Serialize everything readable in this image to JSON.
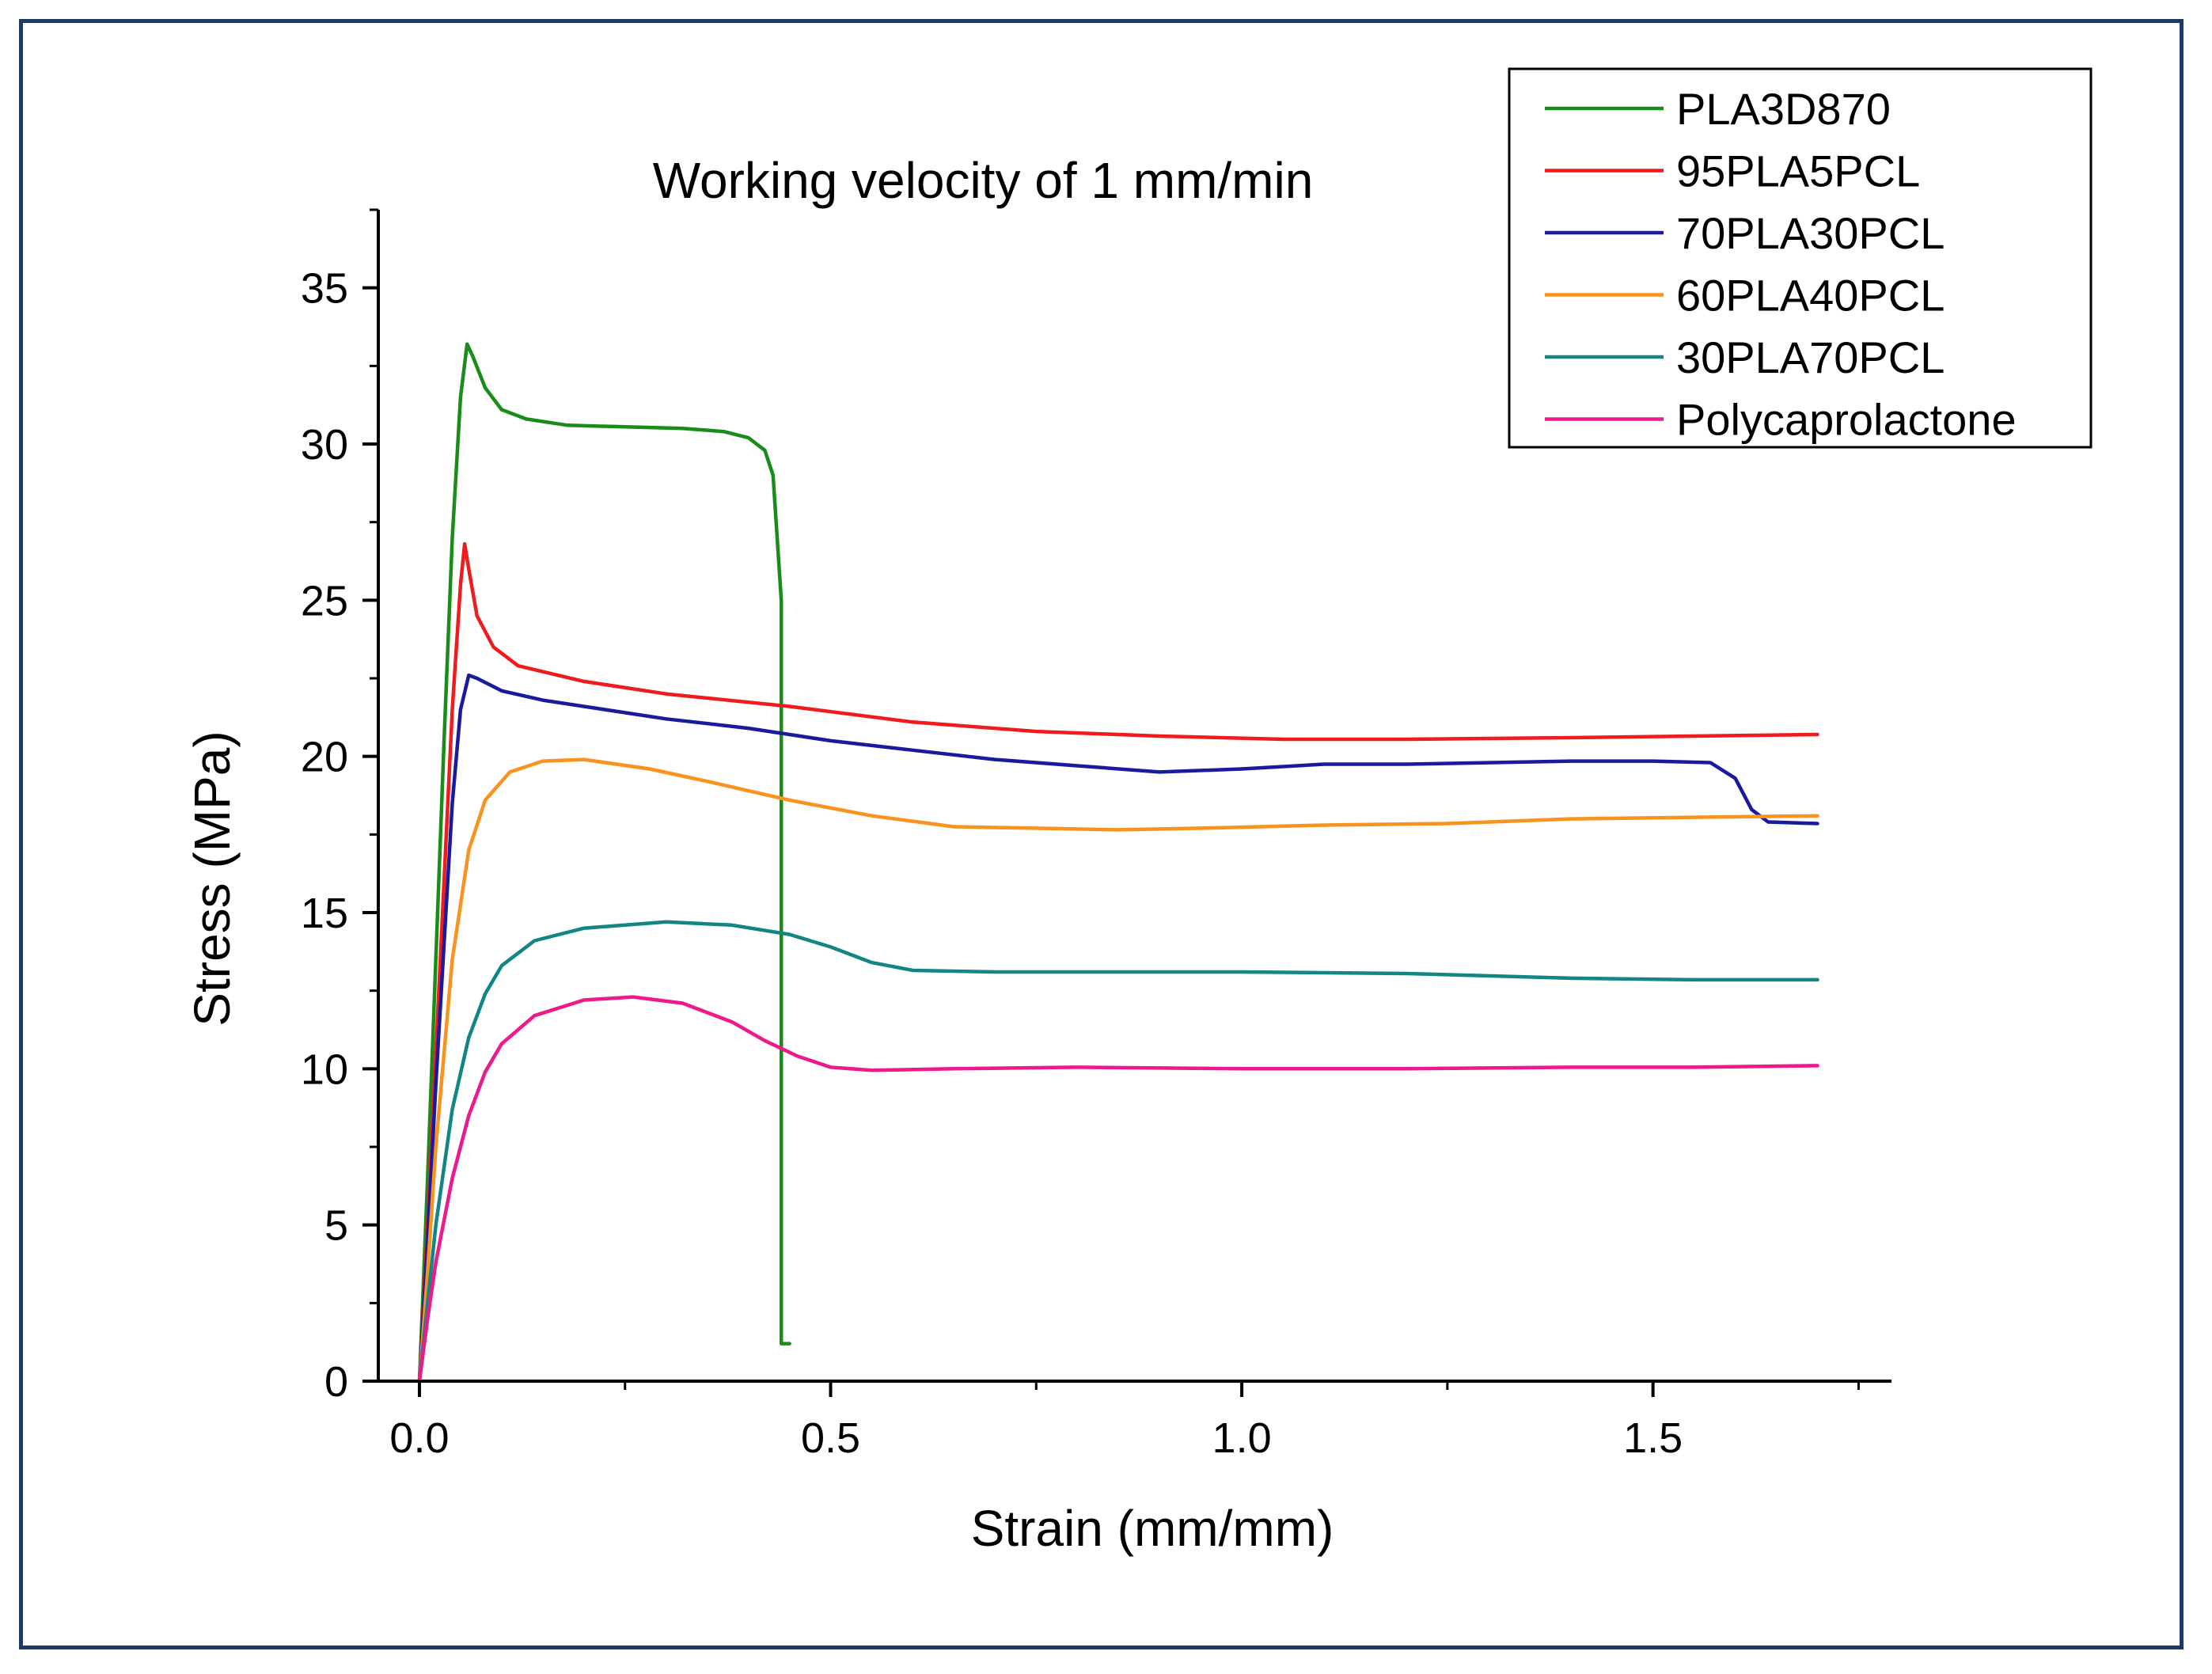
{
  "chart_data": {
    "type": "line",
    "title": "Working velocity of 1 mm/min",
    "xlabel": "Strain (mm/mm)",
    "ylabel": "Stress (MPa)",
    "xlim": [
      -0.05,
      1.79
    ],
    "ylim": [
      0,
      37.5
    ],
    "xticks": [
      0.0,
      0.5,
      1.0,
      1.5
    ],
    "xtick_labels": [
      "0.0",
      "0.5",
      "1.0",
      "1.5"
    ],
    "yticks": [
      0,
      5,
      10,
      15,
      20,
      25,
      30,
      35
    ],
    "ytick_labels": [
      "0",
      "5",
      "10",
      "15",
      "20",
      "25",
      "30",
      "35"
    ],
    "grid": false,
    "legend_position": "top-right",
    "series": [
      {
        "name": "PLA3D870",
        "color": "#1a8c1a",
        "points": [
          [
            0.0,
            0.0
          ],
          [
            0.01,
            6.5
          ],
          [
            0.02,
            13.5
          ],
          [
            0.03,
            20.5
          ],
          [
            0.04,
            27.0
          ],
          [
            0.05,
            31.5
          ],
          [
            0.058,
            33.2
          ],
          [
            0.065,
            32.8
          ],
          [
            0.08,
            31.8
          ],
          [
            0.1,
            31.1
          ],
          [
            0.13,
            30.8
          ],
          [
            0.18,
            30.6
          ],
          [
            0.25,
            30.55
          ],
          [
            0.32,
            30.5
          ],
          [
            0.37,
            30.4
          ],
          [
            0.4,
            30.2
          ],
          [
            0.42,
            29.8
          ],
          [
            0.43,
            29.0
          ],
          [
            0.44,
            25.0
          ],
          [
            0.44,
            1.2
          ],
          [
            0.45,
            1.2
          ]
        ]
      },
      {
        "name": "95PLA5PCL",
        "color": "#ee1c1c",
        "points": [
          [
            0.0,
            0.0
          ],
          [
            0.01,
            5.0
          ],
          [
            0.02,
            10.5
          ],
          [
            0.03,
            16.0
          ],
          [
            0.04,
            21.5
          ],
          [
            0.05,
            25.5
          ],
          [
            0.055,
            26.8
          ],
          [
            0.06,
            26.0
          ],
          [
            0.07,
            24.5
          ],
          [
            0.09,
            23.5
          ],
          [
            0.12,
            22.9
          ],
          [
            0.2,
            22.4
          ],
          [
            0.3,
            22.0
          ],
          [
            0.45,
            21.6
          ],
          [
            0.6,
            21.1
          ],
          [
            0.75,
            20.8
          ],
          [
            0.9,
            20.65
          ],
          [
            1.05,
            20.55
          ],
          [
            1.2,
            20.55
          ],
          [
            1.4,
            20.6
          ],
          [
            1.55,
            20.65
          ],
          [
            1.7,
            20.7
          ]
        ]
      },
      {
        "name": "70PLA30PCL",
        "color": "#1a1a9e",
        "points": [
          [
            0.0,
            0.0
          ],
          [
            0.01,
            4.5
          ],
          [
            0.02,
            9.5
          ],
          [
            0.03,
            14.0
          ],
          [
            0.04,
            18.5
          ],
          [
            0.05,
            21.5
          ],
          [
            0.06,
            22.6
          ],
          [
            0.07,
            22.5
          ],
          [
            0.1,
            22.1
          ],
          [
            0.15,
            21.8
          ],
          [
            0.2,
            21.6
          ],
          [
            0.3,
            21.2
          ],
          [
            0.4,
            20.9
          ],
          [
            0.5,
            20.5
          ],
          [
            0.6,
            20.2
          ],
          [
            0.7,
            19.9
          ],
          [
            0.8,
            19.7
          ],
          [
            0.9,
            19.5
          ],
          [
            1.0,
            19.6
          ],
          [
            1.1,
            19.75
          ],
          [
            1.2,
            19.75
          ],
          [
            1.3,
            19.8
          ],
          [
            1.4,
            19.85
          ],
          [
            1.5,
            19.85
          ],
          [
            1.57,
            19.8
          ],
          [
            1.6,
            19.3
          ],
          [
            1.62,
            18.3
          ],
          [
            1.64,
            17.9
          ],
          [
            1.7,
            17.85
          ]
        ]
      },
      {
        "name": "60PLA40PCL",
        "color": "#f7931e",
        "points": [
          [
            0.0,
            0.0
          ],
          [
            0.01,
            3.5
          ],
          [
            0.02,
            7.5
          ],
          [
            0.04,
            13.5
          ],
          [
            0.06,
            17.0
          ],
          [
            0.08,
            18.6
          ],
          [
            0.11,
            19.5
          ],
          [
            0.15,
            19.85
          ],
          [
            0.2,
            19.9
          ],
          [
            0.28,
            19.6
          ],
          [
            0.35,
            19.2
          ],
          [
            0.45,
            18.6
          ],
          [
            0.55,
            18.1
          ],
          [
            0.65,
            17.75
          ],
          [
            0.75,
            17.7
          ],
          [
            0.85,
            17.65
          ],
          [
            0.95,
            17.7
          ],
          [
            1.1,
            17.8
          ],
          [
            1.25,
            17.85
          ],
          [
            1.4,
            18.0
          ],
          [
            1.55,
            18.05
          ],
          [
            1.7,
            18.1
          ]
        ]
      },
      {
        "name": "30PLA70PCL",
        "color": "#138585",
        "points": [
          [
            0.0,
            0.0
          ],
          [
            0.01,
            2.5
          ],
          [
            0.02,
            5.0
          ],
          [
            0.04,
            8.7
          ],
          [
            0.06,
            11.0
          ],
          [
            0.08,
            12.4
          ],
          [
            0.1,
            13.3
          ],
          [
            0.14,
            14.1
          ],
          [
            0.2,
            14.5
          ],
          [
            0.3,
            14.7
          ],
          [
            0.38,
            14.6
          ],
          [
            0.45,
            14.3
          ],
          [
            0.5,
            13.9
          ],
          [
            0.55,
            13.4
          ],
          [
            0.6,
            13.15
          ],
          [
            0.7,
            13.1
          ],
          [
            0.85,
            13.1
          ],
          [
            1.0,
            13.1
          ],
          [
            1.2,
            13.05
          ],
          [
            1.4,
            12.9
          ],
          [
            1.55,
            12.85
          ],
          [
            1.7,
            12.85
          ]
        ]
      },
      {
        "name": "Polycaprolactone",
        "color": "#ec1a8c",
        "points": [
          [
            0.0,
            0.0
          ],
          [
            0.01,
            2.0
          ],
          [
            0.02,
            3.8
          ],
          [
            0.04,
            6.5
          ],
          [
            0.06,
            8.5
          ],
          [
            0.08,
            9.9
          ],
          [
            0.1,
            10.8
          ],
          [
            0.14,
            11.7
          ],
          [
            0.2,
            12.2
          ],
          [
            0.26,
            12.3
          ],
          [
            0.32,
            12.1
          ],
          [
            0.38,
            11.5
          ],
          [
            0.42,
            10.9
          ],
          [
            0.46,
            10.4
          ],
          [
            0.5,
            10.05
          ],
          [
            0.55,
            9.95
          ],
          [
            0.65,
            10.0
          ],
          [
            0.8,
            10.05
          ],
          [
            1.0,
            10.0
          ],
          [
            1.2,
            10.0
          ],
          [
            1.4,
            10.05
          ],
          [
            1.55,
            10.05
          ],
          [
            1.7,
            10.1
          ]
        ]
      }
    ]
  }
}
